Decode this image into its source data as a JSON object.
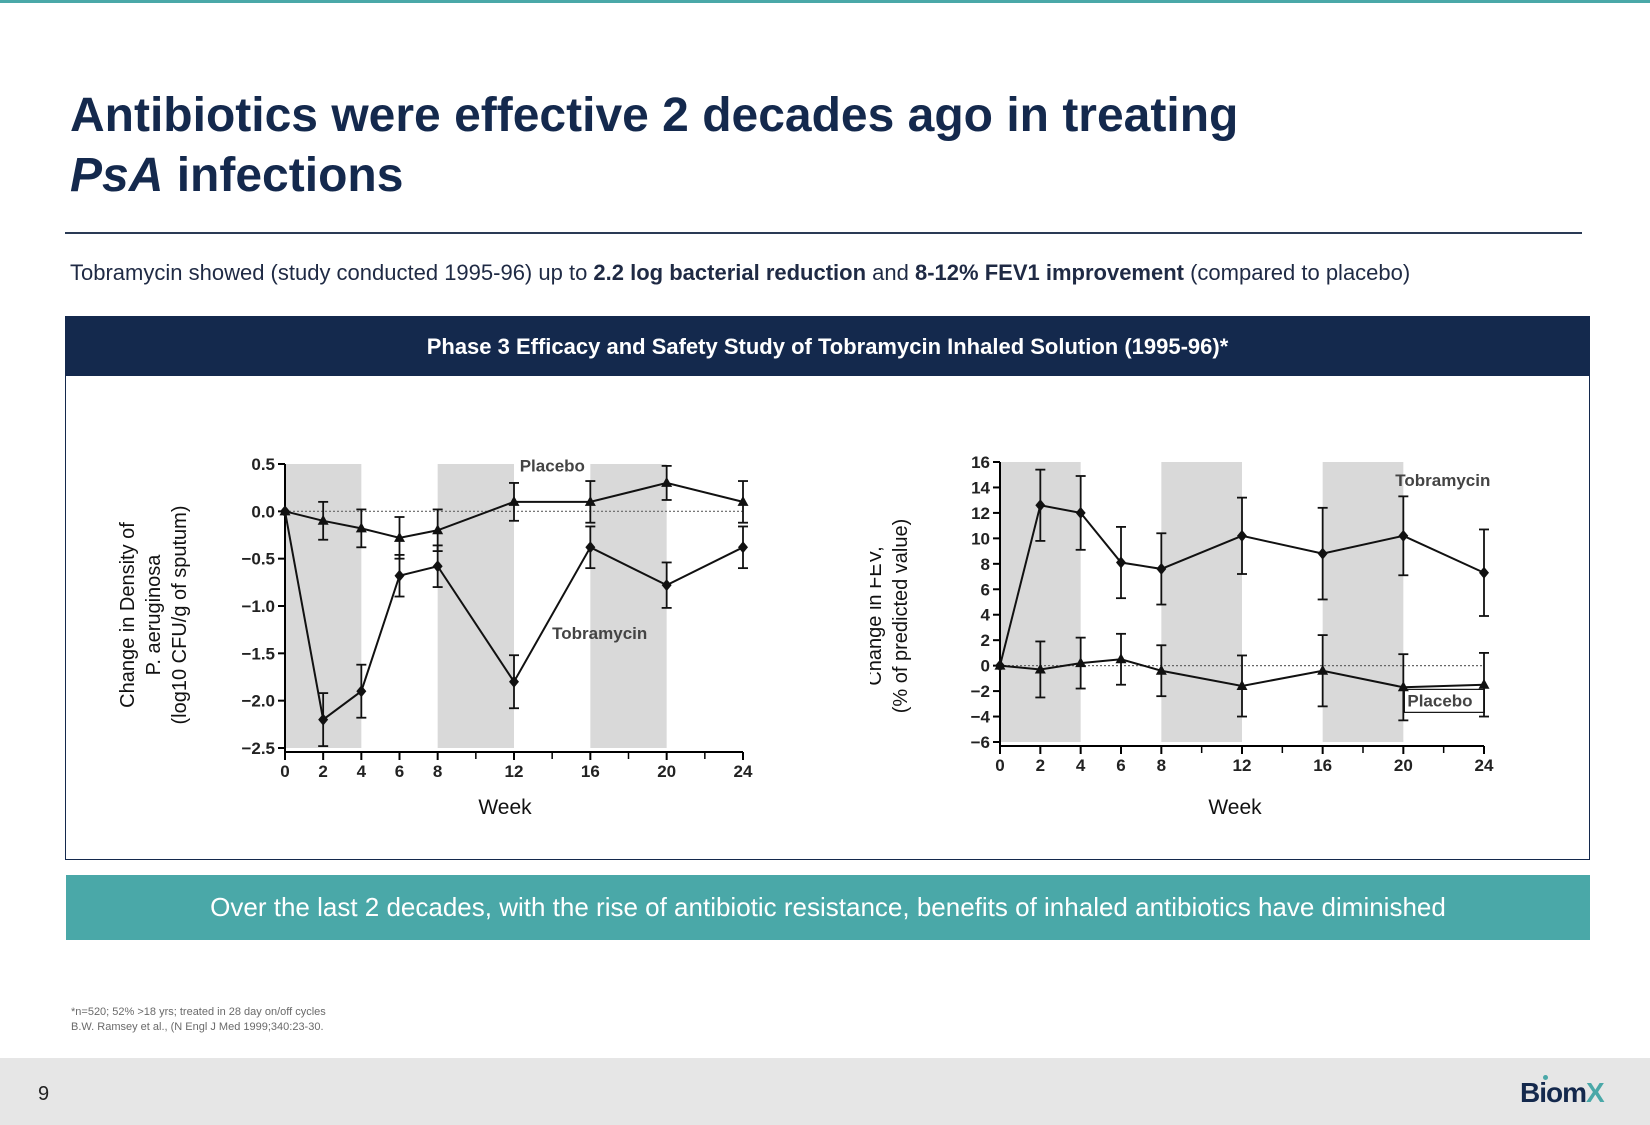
{
  "title": {
    "line1": "Antibiotics were effective 2 decades ago in treating",
    "line2_italic": "PsA",
    "line2_rest": " infections"
  },
  "subtitle": {
    "part1": "Tobramycin showed (study conducted 1995-96) up to ",
    "bold1": "2.2 log bacterial reduction",
    "part2": " and ",
    "bold2": "8-12% FEV1 improvement",
    "part3": " (compared to placebo)"
  },
  "panel_title": "Phase 3 Efficacy and Safety Study of Tobramycin Inhaled Solution (1995-96)*",
  "banner": "Over the last 2 decades, with the rise of antibiotic resistance, benefits of inhaled antibiotics have diminished",
  "footnote": {
    "line1": "*n=520; 52% >18 yrs; treated in 28 day on/off cycles",
    "line2": "B.W. Ramsey et al., (N Engl J Med 1999;340:23-30."
  },
  "page_number": "9",
  "logo": {
    "text": "Biom",
    "accent": "X"
  },
  "colors": {
    "navy": "#14294d",
    "teal": "#4aa8a8",
    "shade": "#d9d9d9"
  },
  "chart_data": [
    {
      "type": "line",
      "xlabel": "Week",
      "ylabel_lines": [
        "Change in Density of",
        "P. aeruginosa",
        "(log10 CFU/g of sputum)"
      ],
      "xlim": [
        0,
        24
      ],
      "ylim": [
        -2.5,
        0.5
      ],
      "xticks": [
        0,
        2,
        4,
        6,
        8,
        12,
        16,
        20,
        24
      ],
      "xtick_labels": [
        "0",
        "2",
        "4",
        "6",
        "8",
        "12",
        "16",
        "20",
        "24"
      ],
      "yticks": [
        0.5,
        0.0,
        -0.5,
        -1.0,
        -1.5,
        -2.0,
        -2.5
      ],
      "ytick_labels": [
        "0.5",
        "0.0",
        "−0.5",
        "−1.0",
        "−1.5",
        "−2.0",
        "−2.5"
      ],
      "shaded_weeks": [
        [
          0,
          4
        ],
        [
          8,
          12
        ],
        [
          16,
          20
        ]
      ],
      "reference_line": 0,
      "series": [
        {
          "name": "Placebo",
          "marker": "triangle",
          "x": [
            0,
            2,
            4,
            6,
            8,
            12,
            16,
            20,
            24
          ],
          "y": [
            0.0,
            -0.1,
            -0.18,
            -0.28,
            -0.2,
            0.1,
            0.1,
            0.3,
            0.1
          ],
          "err": [
            0,
            0.2,
            0.2,
            0.22,
            0.22,
            0.2,
            0.22,
            0.18,
            0.22
          ],
          "label_x": 12.3,
          "label_y": 0.42
        },
        {
          "name": "Tobramycin",
          "marker": "diamond",
          "x": [
            0,
            2,
            4,
            6,
            8,
            12,
            16,
            20,
            24
          ],
          "y": [
            0.0,
            -2.2,
            -1.9,
            -0.68,
            -0.58,
            -1.8,
            -0.38,
            -0.78,
            -0.38
          ],
          "err": [
            0,
            0.28,
            0.28,
            0.22,
            0.22,
            0.28,
            0.22,
            0.24,
            0.22
          ],
          "label_x": 14.0,
          "label_y": -1.35
        }
      ]
    },
    {
      "type": "line",
      "xlabel": "Week",
      "ylabel_lines": [
        "Change in FEV,",
        "(% of predicted value)"
      ],
      "xlim": [
        0,
        24
      ],
      "ylim": [
        -6,
        16
      ],
      "xticks": [
        0,
        2,
        4,
        6,
        8,
        12,
        16,
        20,
        24
      ],
      "xtick_labels": [
        "0",
        "2",
        "4",
        "6",
        "8",
        "12",
        "16",
        "20",
        "24"
      ],
      "yticks": [
        16,
        14,
        12,
        10,
        8,
        6,
        4,
        2,
        0,
        -2,
        -4,
        -6
      ],
      "ytick_labels": [
        "16",
        "14",
        "12",
        "10",
        "8",
        "6",
        "4",
        "2",
        "0",
        "−2",
        "−4",
        "−6"
      ],
      "shaded_weeks": [
        [
          0,
          4
        ],
        [
          8,
          12
        ],
        [
          16,
          20
        ]
      ],
      "reference_line": 0,
      "series": [
        {
          "name": "Tobramycin",
          "marker": "diamond",
          "x": [
            0,
            2,
            4,
            6,
            8,
            12,
            16,
            20,
            24
          ],
          "y": [
            0,
            12.6,
            12.0,
            8.1,
            7.6,
            10.2,
            8.8,
            10.2,
            7.3
          ],
          "err": [
            0,
            2.8,
            2.9,
            2.8,
            2.8,
            3.0,
            3.6,
            3.1,
            3.4
          ],
          "label_x": 19.6,
          "label_y": 14.1
        },
        {
          "name": "Placebo",
          "marker": "triangle",
          "x": [
            0,
            2,
            4,
            6,
            8,
            12,
            16,
            20,
            24
          ],
          "y": [
            0,
            -0.3,
            0.2,
            0.5,
            -0.4,
            -1.6,
            -0.4,
            -1.7,
            -1.5
          ],
          "err": [
            0,
            2.2,
            2.0,
            2.0,
            2.0,
            2.4,
            2.8,
            2.6,
            2.5
          ],
          "label_x": 20.2,
          "label_y": -3.2,
          "boxed": true
        }
      ]
    }
  ]
}
